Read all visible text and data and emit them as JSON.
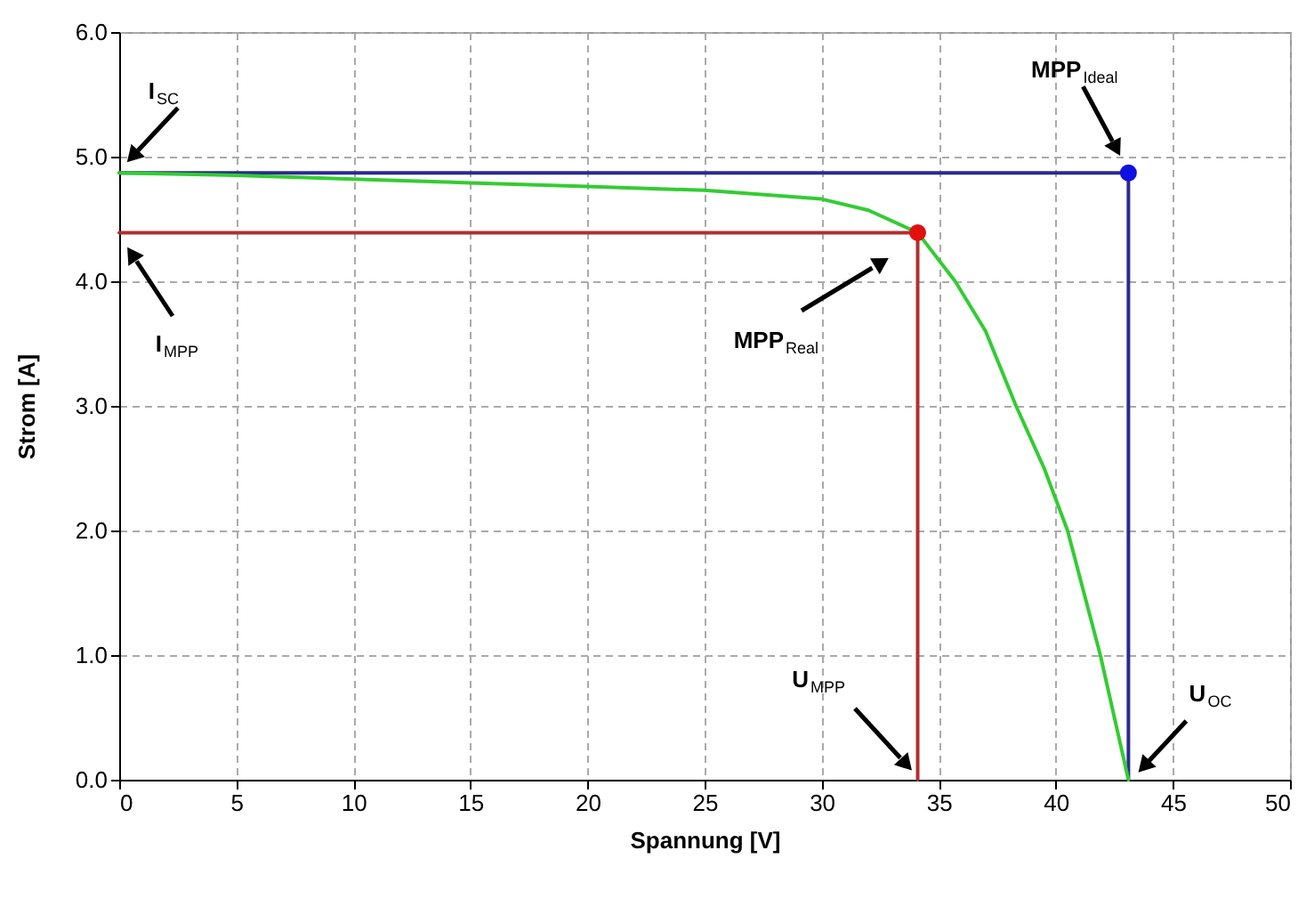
{
  "chart_data": {
    "type": "line",
    "xlabel": "Spannung [V]",
    "ylabel": "Strom [A]",
    "xlim": [
      0,
      50
    ],
    "xticks": [
      0,
      5,
      10,
      15,
      20,
      25,
      30,
      35,
      40,
      45,
      50
    ],
    "ylim": [
      0,
      6
    ],
    "yticks": [
      {
        "value": 0,
        "label": "0.0"
      },
      {
        "value": 1,
        "label": "1.0"
      },
      {
        "value": 2,
        "label": "2.0"
      },
      {
        "value": 3,
        "label": "3.0"
      },
      {
        "value": 4,
        "label": "4.0"
      },
      {
        "value": 5,
        "label": "5.0"
      },
      {
        "value": 6,
        "label": "6.0"
      }
    ],
    "grid": true,
    "series": [
      {
        "color": "#b03030",
        "x": [
          0,
          34.1,
          34.1
        ],
        "values": [
          4.39,
          4.39,
          0
        ]
      },
      {
        "color": "#2a2a90",
        "x": [
          0,
          43.1,
          43.1
        ],
        "values": [
          4.87,
          4.87,
          0
        ]
      },
      {
        "color": "#33cc33",
        "x": [
          0,
          5,
          10,
          15,
          20,
          25,
          30,
          32,
          34.1,
          35.7,
          37,
          38.3,
          39.5,
          40.5,
          41.2,
          41.9,
          42.5,
          43.1
        ],
        "values": [
          4.87,
          4.85,
          4.82,
          4.79,
          4.76,
          4.73,
          4.66,
          4.57,
          4.39,
          4.0,
          3.6,
          3.0,
          2.5,
          2.0,
          1.5,
          1.0,
          0.5,
          0
        ]
      },
      {
        "type": "scatter",
        "marker": "circle",
        "color": "#e01010",
        "x": [
          34.1
        ],
        "values": [
          4.39
        ]
      },
      {
        "type": "scatter",
        "marker": "circle",
        "color": "#1010e0",
        "x": [
          43.1
        ],
        "values": [
          4.87
        ]
      }
    ],
    "annotations": [
      "I$_{SC}$",
      "I$_{MPP}$",
      "MPP$_{Real}$",
      "MPP$_{Ideal}$",
      "U$_{MPP}$",
      "U$_{OC}$"
    ]
  }
}
